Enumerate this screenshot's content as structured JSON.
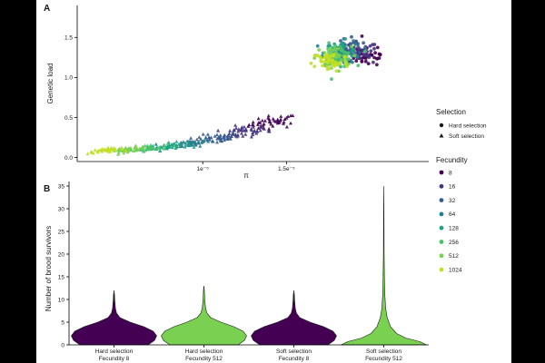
{
  "palette": {
    "c8": "#440154",
    "c16": "#46337e",
    "c32": "#365c8d",
    "c64": "#277f8e",
    "c128": "#1fa187",
    "c256": "#4ac16d",
    "c512": "#7ad151",
    "c1024": "#c2df23"
  },
  "chart_data": [
    {
      "panel": "A",
      "type": "scatter",
      "xlabel": "π",
      "ylabel": "Genetic load",
      "xlim": [
        2.5e-06,
        2.35e-05
      ],
      "ylim": [
        -0.05,
        1.9
      ],
      "x_ticks": [
        {
          "value": 1e-05,
          "label": "1e⁻⁵"
        },
        {
          "value": 1.5e-05,
          "label": "1.5e⁻⁵"
        }
      ],
      "y_ticks": [
        {
          "value": 0.0,
          "label": "0.0"
        },
        {
          "value": 0.5,
          "label": "0.5"
        },
        {
          "value": 1.0,
          "label": "1.0"
        },
        {
          "value": 1.5,
          "label": "1.5"
        }
      ],
      "shape_legend": {
        "title": "Selection",
        "entries": [
          "Hard selection",
          "Soft selection"
        ]
      },
      "color_legend": {
        "title": "Fecundity",
        "entries": [
          "8",
          "16",
          "32",
          "64",
          "128",
          "256",
          "512",
          "1024"
        ]
      },
      "series": [
        {
          "name": "Soft selection, Fecundity 8",
          "selection": "soft",
          "fecundity": 8,
          "color_key": "c8",
          "x_center": 1.42e-05,
          "y_center": 0.44,
          "spread": [
            1.2e-06,
            0.07
          ],
          "count": 45
        },
        {
          "name": "Soft selection, Fecundity 16",
          "selection": "soft",
          "fecundity": 16,
          "color_key": "c16",
          "x_center": 1.24e-05,
          "y_center": 0.32,
          "spread": [
            1.2e-06,
            0.06
          ],
          "count": 45
        },
        {
          "name": "Soft selection, Fecundity 32",
          "selection": "soft",
          "fecundity": 32,
          "color_key": "c32",
          "x_center": 1.08e-05,
          "y_center": 0.24,
          "spread": [
            1.1e-06,
            0.05
          ],
          "count": 45
        },
        {
          "name": "Soft selection, Fecundity 64",
          "selection": "soft",
          "fecundity": 64,
          "color_key": "c64",
          "x_center": 9.3e-06,
          "y_center": 0.18,
          "spread": [
            1e-06,
            0.04
          ],
          "count": 45
        },
        {
          "name": "Soft selection, Fecundity 128",
          "selection": "soft",
          "fecundity": 128,
          "color_key": "c128",
          "x_center": 8e-06,
          "y_center": 0.14,
          "spread": [
            9e-07,
            0.035
          ],
          "count": 40
        },
        {
          "name": "Soft selection, Fecundity 256",
          "selection": "soft",
          "fecundity": 256,
          "color_key": "c256",
          "x_center": 6.8e-06,
          "y_center": 0.12,
          "spread": [
            9e-07,
            0.03
          ],
          "count": 40
        },
        {
          "name": "Soft selection, Fecundity 512",
          "selection": "soft",
          "fecundity": 512,
          "color_key": "c512",
          "x_center": 5.5e-06,
          "y_center": 0.1,
          "spread": [
            9e-07,
            0.025
          ],
          "count": 40
        },
        {
          "name": "Soft selection, Fecundity 1024",
          "selection": "soft",
          "fecundity": 1024,
          "color_key": "c1024",
          "x_center": 4.2e-06,
          "y_center": 0.09,
          "spread": [
            9e-07,
            0.02
          ],
          "count": 40
        },
        {
          "name": "Hard selection, Fecundity 8",
          "selection": "hard",
          "fecundity": 8,
          "color_key": "c8",
          "x_center": 1.98e-05,
          "y_center": 1.28,
          "spread": [
            1.1e-06,
            0.12
          ],
          "count": 40
        },
        {
          "name": "Hard selection, Fecundity 16",
          "selection": "hard",
          "fecundity": 16,
          "color_key": "c16",
          "x_center": 1.93e-05,
          "y_center": 1.3,
          "spread": [
            1e-06,
            0.12
          ],
          "count": 35
        },
        {
          "name": "Hard selection, Fecundity 32",
          "selection": "hard",
          "fecundity": 32,
          "color_key": "c32",
          "x_center": 1.87e-05,
          "y_center": 1.33,
          "spread": [
            1e-06,
            0.12
          ],
          "count": 35
        },
        {
          "name": "Hard selection, Fecundity 64",
          "selection": "hard",
          "fecundity": 64,
          "color_key": "c64",
          "x_center": 1.84e-05,
          "y_center": 1.32,
          "spread": [
            9e-07,
            0.12
          ],
          "count": 35
        },
        {
          "name": "Hard selection, Fecundity 128",
          "selection": "hard",
          "fecundity": 128,
          "color_key": "c128",
          "x_center": 1.82e-05,
          "y_center": 1.31,
          "spread": [
            9e-07,
            0.12
          ],
          "count": 35
        },
        {
          "name": "Hard selection, Fecundity 256",
          "selection": "hard",
          "fecundity": 256,
          "color_key": "c256",
          "x_center": 1.8e-05,
          "y_center": 1.27,
          "spread": [
            9e-07,
            0.12
          ],
          "count": 35
        },
        {
          "name": "Hard selection, Fecundity 512",
          "selection": "hard",
          "fecundity": 512,
          "color_key": "c512",
          "x_center": 1.78e-05,
          "y_center": 1.24,
          "spread": [
            9e-07,
            0.12
          ],
          "count": 40
        },
        {
          "name": "Hard selection, Fecundity 1024",
          "selection": "hard",
          "fecundity": 1024,
          "color_key": "c1024",
          "x_center": 1.76e-05,
          "y_center": 1.2,
          "spread": [
            9e-07,
            0.11
          ],
          "count": 45
        }
      ]
    },
    {
      "panel": "B",
      "type": "violin",
      "ylabel": "Number of brood survivors",
      "ylim": [
        0,
        36
      ],
      "y_ticks": [
        0,
        5,
        10,
        15,
        20,
        25,
        30,
        35
      ],
      "categories": [
        {
          "line1": "Hard selection",
          "line2": "Fecundity 8",
          "color_key": "c8",
          "max": 12,
          "density": [
            [
              0,
              0.8
            ],
            [
              1,
              0.95
            ],
            [
              2,
              1.0
            ],
            [
              3,
              0.92
            ],
            [
              4,
              0.7
            ],
            [
              5,
              0.38
            ],
            [
              6,
              0.14
            ],
            [
              7,
              0.06
            ],
            [
              8,
              0.035
            ],
            [
              9,
              0.025
            ],
            [
              10,
              0.018
            ],
            [
              11,
              0.012
            ],
            [
              12,
              0.0
            ]
          ]
        },
        {
          "line1": "Hard selection",
          "line2": "Fecundity 512",
          "color_key": "c512",
          "max": 13,
          "density": [
            [
              0,
              0.8
            ],
            [
              1,
              0.95
            ],
            [
              2,
              1.0
            ],
            [
              3,
              0.92
            ],
            [
              4,
              0.7
            ],
            [
              5,
              0.4
            ],
            [
              6,
              0.16
            ],
            [
              7,
              0.07
            ],
            [
              8,
              0.04
            ],
            [
              9,
              0.03
            ],
            [
              10,
              0.02
            ],
            [
              11,
              0.015
            ],
            [
              12,
              0.01
            ],
            [
              13,
              0.0
            ]
          ]
        },
        {
          "line1": "Soft selection",
          "line2": "Fecundity 8",
          "color_key": "c8",
          "max": 12,
          "density": [
            [
              0,
              0.8
            ],
            [
              1,
              0.95
            ],
            [
              2,
              1.0
            ],
            [
              3,
              0.92
            ],
            [
              4,
              0.7
            ],
            [
              5,
              0.38
            ],
            [
              6,
              0.14
            ],
            [
              7,
              0.06
            ],
            [
              8,
              0.035
            ],
            [
              9,
              0.025
            ],
            [
              10,
              0.018
            ],
            [
              11,
              0.012
            ],
            [
              12,
              0.0
            ]
          ]
        },
        {
          "line1": "Soft selection",
          "line2": "Fecundity 512",
          "color_key": "c512",
          "max": 35,
          "density": [
            [
              0,
              1.0
            ],
            [
              0.7,
              0.85
            ],
            [
              1.5,
              0.52
            ],
            [
              2.5,
              0.3
            ],
            [
              4,
              0.16
            ],
            [
              6,
              0.08
            ],
            [
              8,
              0.045
            ],
            [
              11,
              0.025
            ],
            [
              15,
              0.014
            ],
            [
              20,
              0.009
            ],
            [
              25,
              0.006
            ],
            [
              30,
              0.004
            ],
            [
              35,
              0.0
            ]
          ]
        }
      ]
    }
  ]
}
